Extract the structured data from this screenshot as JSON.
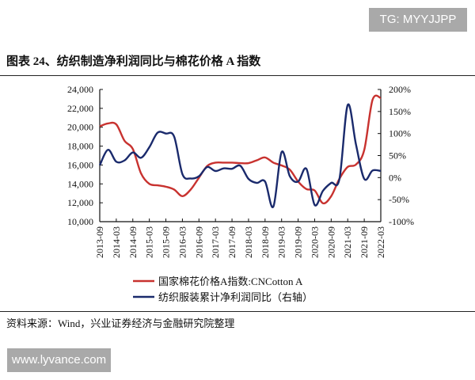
{
  "watermark_top": "TG: MYYJJPP",
  "watermark_bottom": "www.lyvance.com",
  "title": "图表 24、纺织制造净利润同比与棉花价格 A 指数",
  "source": "资料来源：Wind，兴业证券经济与金融研究院整理",
  "chart_data": {
    "type": "line",
    "title": "图表 24、纺织制造净利润同比与棉花价格 A 指数",
    "x_tick_labels": [
      "2013-09",
      "2014-03",
      "2014-09",
      "2015-03",
      "2015-09",
      "2016-03",
      "2016-09",
      "2017-03",
      "2017-09",
      "2018-03",
      "2018-09",
      "2019-03",
      "2019-09",
      "2020-03",
      "2020-09",
      "2021-03",
      "2021-09",
      "2022-03"
    ],
    "x": [
      "2013-09",
      "2013-12",
      "2014-03",
      "2014-06",
      "2014-09",
      "2014-12",
      "2015-03",
      "2015-06",
      "2015-09",
      "2015-12",
      "2016-03",
      "2016-06",
      "2016-09",
      "2016-12",
      "2017-03",
      "2017-06",
      "2017-09",
      "2017-12",
      "2018-03",
      "2018-06",
      "2018-09",
      "2018-12",
      "2019-03",
      "2019-06",
      "2019-09",
      "2019-12",
      "2020-03",
      "2020-06",
      "2020-09",
      "2020-12",
      "2021-03",
      "2021-06",
      "2021-09",
      "2021-12",
      "2022-03"
    ],
    "left_axis": {
      "ylim": [
        10000,
        24000
      ],
      "ticks": [
        "10,000",
        "12,000",
        "14,000",
        "16,000",
        "18,000",
        "20,000",
        "22,000",
        "24,000"
      ]
    },
    "right_axis": {
      "ylim": [
        -100,
        200
      ],
      "ticks": [
        "-100%",
        "-50%",
        "0%",
        "50%",
        "100%",
        "150%",
        "200%"
      ]
    },
    "grid": false,
    "legend_placement": "bottom",
    "series": [
      {
        "name": "国家棉花价格A指数:CNCotton A",
        "axis": "left",
        "color": "#c8322f",
        "values": [
          20100,
          20400,
          20300,
          18560,
          17700,
          15100,
          14000,
          13850,
          13700,
          13400,
          12700,
          13400,
          14650,
          15900,
          16250,
          16250,
          16250,
          16200,
          16200,
          16500,
          16800,
          16250,
          15950,
          15500,
          14250,
          13450,
          13300,
          11950,
          12700,
          14550,
          15800,
          16050,
          17600,
          22900,
          23100
        ]
      },
      {
        "name": "纺织服装累计净利润同比（右轴）",
        "axis": "right",
        "color": "#1a2a6c",
        "values": [
          28,
          63,
          36,
          39,
          57,
          45,
          69,
          102,
          100,
          93,
          8,
          -2,
          3,
          24,
          15,
          21,
          20,
          27,
          -3,
          -12,
          -9,
          -66,
          58,
          3,
          -9,
          20,
          -62,
          -30,
          -12,
          -3,
          165,
          75,
          -3,
          16,
          15
        ]
      }
    ]
  }
}
